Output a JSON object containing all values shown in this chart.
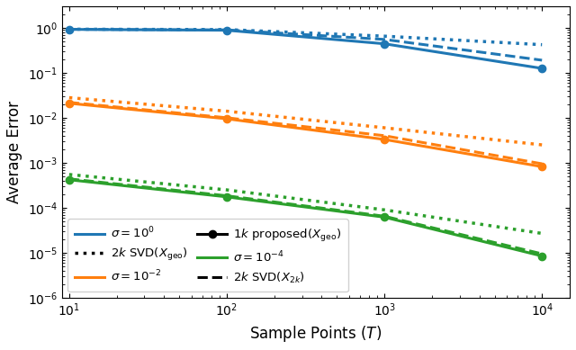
{
  "T_values": [
    10,
    100,
    1000,
    10000
  ],
  "colors": {
    "blue": "#1f77b4",
    "orange": "#ff7f0e",
    "green": "#2ca02c"
  },
  "blue_proposed": [
    0.92,
    0.88,
    0.44,
    0.125
  ],
  "blue_svd2k_geo": [
    0.93,
    0.91,
    0.65,
    0.42
  ],
  "blue_svd2k": [
    0.925,
    0.895,
    0.55,
    0.19
  ],
  "orange_proposed": [
    0.021,
    0.0095,
    0.0033,
    0.00082
  ],
  "orange_svd2k_geo": [
    0.028,
    0.014,
    0.006,
    0.0025
  ],
  "orange_svd2k": [
    0.022,
    0.01,
    0.004,
    0.00095
  ],
  "green_proposed": [
    0.00042,
    0.000175,
    6.2e-05,
    8.5e-06
  ],
  "green_svd2k_geo": [
    0.00055,
    0.00025,
    9e-05,
    2.7e-05
  ],
  "green_svd2k": [
    0.00044,
    0.000185,
    6.5e-05,
    9.5e-06
  ],
  "xlim": [
    9,
    15000
  ],
  "ylim": [
    1e-06,
    3
  ],
  "xlabel": "Sample Points ($T$)",
  "ylabel": "Average Error",
  "legend_labels_color": [
    "$\\sigma = 10^{0}$",
    "$\\sigma = 10^{-2}$",
    "$\\sigma = 10^{-4}$"
  ],
  "legend_labels_style": [
    "$2k$ SVD$(X_\\mathrm{geo})$",
    "$1k$ proposed$(X_\\mathrm{geo})$",
    "$2k$ SVD$(X_{2k})$"
  ]
}
